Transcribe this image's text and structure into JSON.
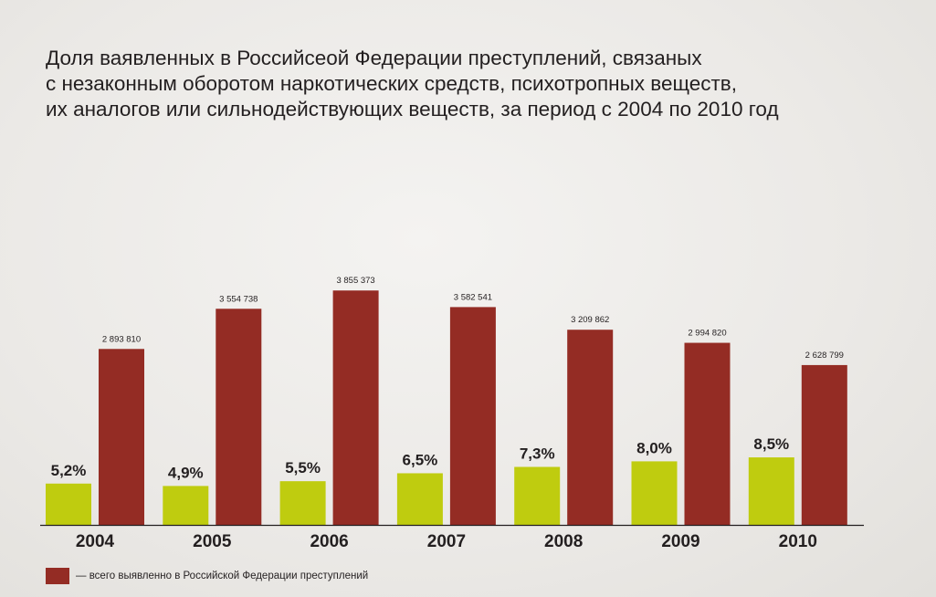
{
  "chart_data": {
    "type": "bar",
    "title_lines": [
      "Доля ваявленных в Российсеой Федерации преступлений, связаных",
      "с незаконным оборотом наркотических средств, психотропных веществ,",
      "их аналогов или сильнодействующих веществ, за период с 2004 по 2010 год"
    ],
    "categories": [
      "2004",
      "2005",
      "2006",
      "2007",
      "2008",
      "2009",
      "2010"
    ],
    "series": [
      {
        "values": [
          5.2,
          4.9,
          5.5,
          6.5,
          7.3,
          8.0,
          8.5
        ],
        "labels": [
          "5,2%",
          "4,9%",
          "5,5%",
          "6,5%",
          "7,3%",
          "8,0%",
          "8,5%"
        ],
        "color": "#bfcc0f"
      },
      {
        "name": "— всего выявленно в Российской Федерации преступлений",
        "values": [
          2893810,
          3554738,
          3855373,
          3582541,
          3209862,
          2994820,
          2628799
        ],
        "labels": [
          "2 893 810",
          "3 554 738",
          "3 855 373",
          "3 582 541",
          "3 209 862",
          "2 994 820",
          "2 628 799"
        ],
        "color": "#942c24"
      }
    ],
    "legend_position": "bottom-left",
    "axis_color": "#231f20",
    "grid": false
  }
}
